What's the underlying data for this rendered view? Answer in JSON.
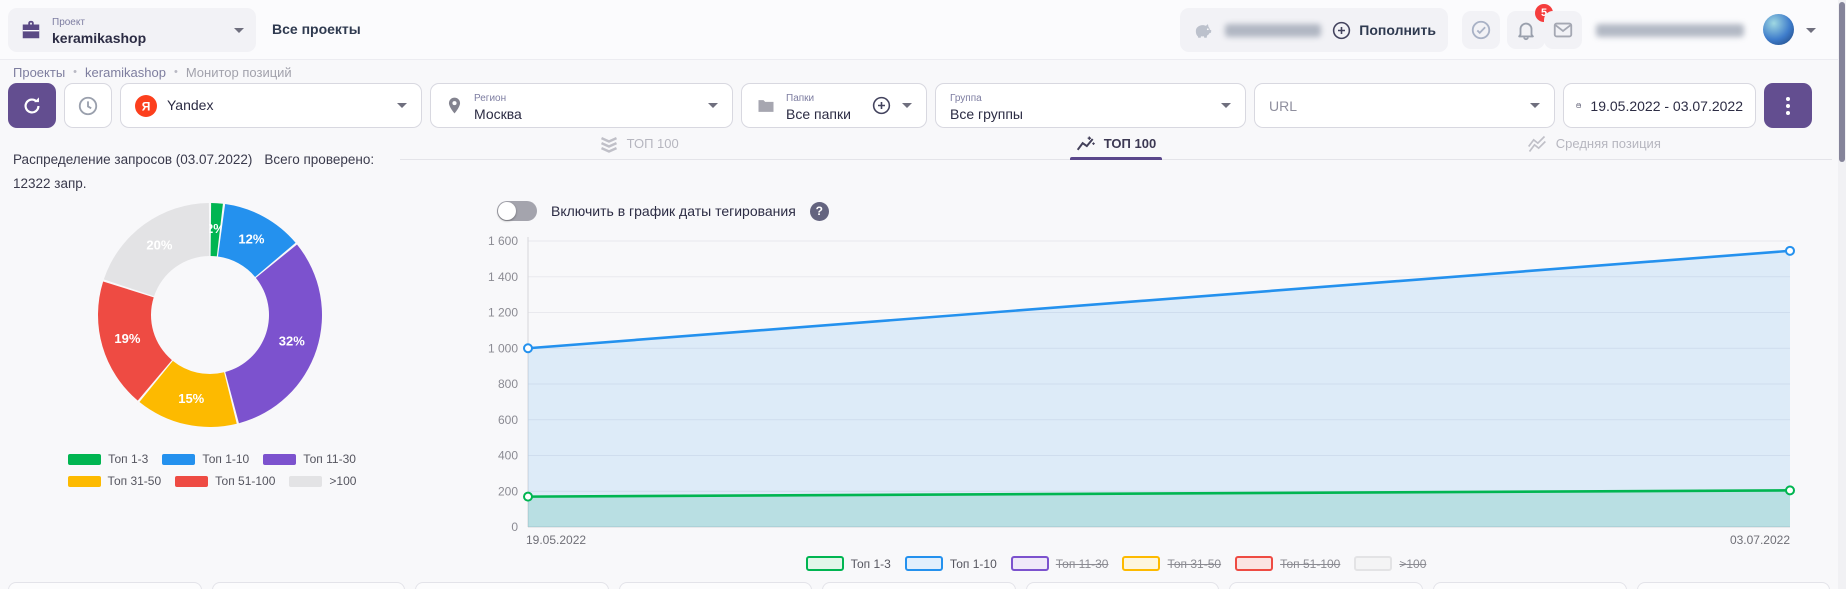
{
  "accent_color": "#634e90",
  "header": {
    "project_label": "Проект",
    "project_name": "keramikashop",
    "all_projects": "Все проекты",
    "topup_label": "Пополнить",
    "notification_count": "5"
  },
  "breadcrumbs": {
    "separator": "•",
    "items": [
      "Проекты",
      "keramikashop",
      "Монитор позиций"
    ]
  },
  "toolbar": {
    "engine": {
      "value": "Yandex"
    },
    "region": {
      "label": "Регион",
      "value": "Москва"
    },
    "folders": {
      "label": "Папки",
      "value": "Все папки"
    },
    "groups": {
      "label": "Группа",
      "value": "Все группы"
    },
    "url": {
      "placeholder": "URL"
    },
    "date_range": "19.05.2022 - 03.07.2022"
  },
  "distribution": {
    "title": "Распределение запросов (03.07.2022)",
    "total": "Всего проверено: 12322 запр."
  },
  "tabs": [
    {
      "label": "ТОП 100",
      "icon": "layers-icon",
      "active": false
    },
    {
      "label": "ТОП 100",
      "icon": "chart-line-icon",
      "active": true
    },
    {
      "label": "Средняя позиция",
      "icon": "zigzag-icon",
      "active": false
    }
  ],
  "toggle": {
    "label": "Включить в график даты тегирования",
    "on": false
  },
  "chart_data": [
    {
      "type": "pie",
      "title": "Распределение запросов (03.07.2022)",
      "subtitle": "Всего проверено: 12322 запр.",
      "labels": [
        "Топ 1-3",
        "Топ 1-10",
        "Топ 11-30",
        "Топ 31-50",
        "Топ 51-100",
        ">100"
      ],
      "values": [
        2,
        12,
        32,
        15,
        19,
        20
      ],
      "unit": "%",
      "colors": [
        "#00b551",
        "#2491ee",
        "#7c52ce",
        "#fdba00",
        "#ee4b43",
        "#e3e3e5"
      ],
      "donut": true,
      "legend_position": "bottom"
    },
    {
      "type": "area",
      "x": [
        "19.05.2022",
        "03.07.2022"
      ],
      "series": [
        {
          "name": "Топ 1-3",
          "color": "#00b551",
          "values": [
            170,
            205
          ],
          "active": true
        },
        {
          "name": "Топ 1-10",
          "color": "#2491ee",
          "values": [
            1000,
            1545
          ],
          "active": true
        },
        {
          "name": "Топ 11-30",
          "color": "#7c52ce",
          "values": [],
          "active": false
        },
        {
          "name": "Топ 31-50",
          "color": "#fdba00",
          "values": [],
          "active": false
        },
        {
          "name": "Топ 51-100",
          "color": "#ee4b43",
          "values": [],
          "active": false
        },
        {
          "name": ">100",
          "color": "#e3e3e5",
          "values": [],
          "active": false
        }
      ],
      "ylim": [
        0,
        1600
      ],
      "ytick_step": 200,
      "grid": true,
      "legend_position": "bottom"
    }
  ]
}
